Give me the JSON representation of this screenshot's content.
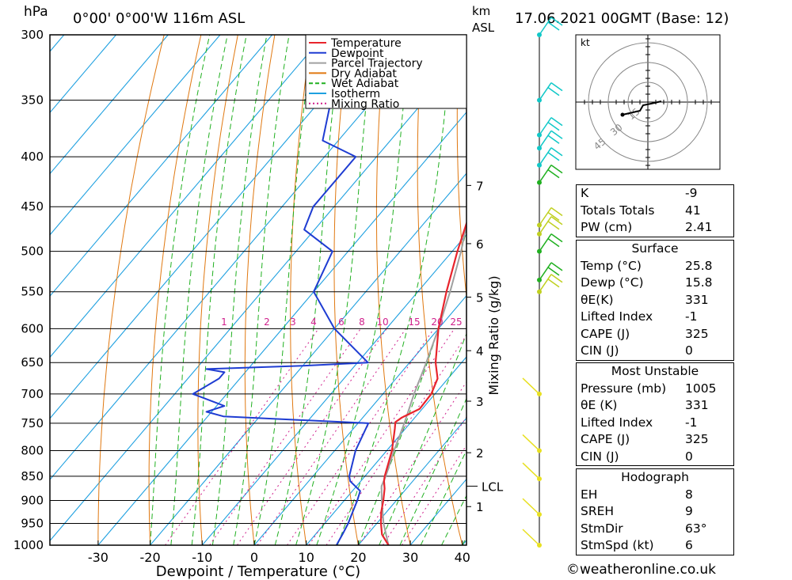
{
  "header": {
    "pressure_unit": "hPa",
    "location": "0°00' 0°00'W 116m ASL",
    "height_unit": "km",
    "height_unit2": "ASL",
    "datetime": "17.06.2021 00GMT (Base: 12)"
  },
  "colors": {
    "temperature": "#e8242c",
    "dewpoint": "#1e3cd2",
    "parcel": "#a0a0a0",
    "dry_adiabat": "#e07810",
    "wet_adiabat": "#20b020",
    "isotherm": "#1ea0e0",
    "mixing_ratio": "#d0208c",
    "wind_levels": [
      "#10c8c8",
      "#20b020",
      "#c0d020",
      "#e8e020"
    ]
  },
  "legend": [
    "Temperature",
    "Dewpoint",
    "Parcel Trajectory",
    "Dry Adiabat",
    "Wet Adiabat",
    "Isotherm",
    "Mixing Ratio"
  ],
  "chart_data": {
    "type": "line",
    "title": "",
    "xlabel": "Dewpoint / Temperature (°C)",
    "ylabel": "hPa",
    "y_right_label": "Mixing Ratio (g/kg)",
    "x_ticks": [
      -30,
      -20,
      -10,
      0,
      10,
      20,
      30,
      40
    ],
    "pressure_levels": [
      300,
      350,
      400,
      450,
      500,
      550,
      600,
      650,
      700,
      750,
      800,
      850,
      900,
      950,
      1000
    ],
    "height_ticks_km": [
      {
        "label": "1",
        "p": 913
      },
      {
        "label": "2",
        "p": 804
      },
      {
        "label": "3",
        "p": 712
      },
      {
        "label": "4",
        "p": 632
      },
      {
        "label": "5",
        "p": 557
      },
      {
        "label": "6",
        "p": 491
      },
      {
        "label": "7",
        "p": 428
      }
    ],
    "lcl": {
      "label": "LCL",
      "p": 870
    },
    "mixing_ratio_labels": [
      "1",
      "2",
      "3",
      "4",
      "6",
      "8",
      "10",
      "15",
      "20",
      "25"
    ],
    "series": [
      {
        "name": "Temperature",
        "points": [
          [
            1000,
            25.8
          ],
          [
            975,
            22.8
          ],
          [
            950,
            20.8
          ],
          [
            925,
            19.0
          ],
          [
            900,
            17.5
          ],
          [
            875,
            15.8
          ],
          [
            860,
            14.5
          ],
          [
            850,
            13.8
          ],
          [
            800,
            11.0
          ],
          [
            760,
            8.0
          ],
          [
            748,
            7.0
          ],
          [
            740,
            7.5
          ],
          [
            725,
            9.5
          ],
          [
            700,
            9.3
          ],
          [
            675,
            8.0
          ],
          [
            650,
            5.0
          ],
          [
            600,
            0.0
          ],
          [
            550,
            -4.5
          ],
          [
            500,
            -9.0
          ],
          [
            450,
            -13.5
          ],
          [
            400,
            -20.0
          ],
          [
            350,
            -29.5
          ],
          [
            300,
            -40.0
          ]
        ]
      },
      {
        "name": "Dewpoint",
        "points": [
          [
            1000,
            15.8
          ],
          [
            975,
            15.2
          ],
          [
            950,
            14.5
          ],
          [
            925,
            13.5
          ],
          [
            900,
            12.5
          ],
          [
            880,
            11.5
          ],
          [
            860,
            8.0
          ],
          [
            850,
            7.0
          ],
          [
            800,
            4.0
          ],
          [
            750,
            2.0
          ],
          [
            738,
            -27.0
          ],
          [
            730,
            -31.0
          ],
          [
            720,
            -28.5
          ],
          [
            700,
            -36.5
          ],
          [
            675,
            -34.0
          ],
          [
            665,
            -34.0
          ],
          [
            660,
            -38.0
          ],
          [
            655,
            -20.0
          ],
          [
            650,
            -8.0
          ],
          [
            600,
            -20.0
          ],
          [
            550,
            -30.0
          ],
          [
            500,
            -33.0
          ],
          [
            475,
            -42.0
          ],
          [
            450,
            -44.0
          ],
          [
            400,
            -44.0
          ],
          [
            385,
            -53.0
          ],
          [
            350,
            -58.0
          ],
          [
            300,
            -65.0
          ]
        ]
      },
      {
        "name": "Parcel Trajectory",
        "points": [
          [
            1000,
            25.8
          ],
          [
            950,
            21.3
          ],
          [
            900,
            17.2
          ],
          [
            870,
            14.8
          ],
          [
            850,
            14.0
          ],
          [
            800,
            11.4
          ],
          [
            750,
            8.9
          ],
          [
            700,
            6.0
          ],
          [
            650,
            3.2
          ],
          [
            600,
            0.0
          ],
          [
            550,
            -3.8
          ],
          [
            500,
            -8.3
          ],
          [
            450,
            -13.8
          ],
          [
            400,
            -20.7
          ],
          [
            350,
            -29.2
          ],
          [
            300,
            -39.7
          ]
        ]
      }
    ],
    "wind_barbs": [
      {
        "p": 300,
        "level": 0
      },
      {
        "p": 350,
        "level": 0
      },
      {
        "p": 380,
        "level": 0
      },
      {
        "p": 392,
        "level": 0
      },
      {
        "p": 408,
        "level": 0
      },
      {
        "p": 425,
        "level": 1
      },
      {
        "p": 470,
        "level": 2
      },
      {
        "p": 480,
        "level": 2
      },
      {
        "p": 500,
        "level": 1
      },
      {
        "p": 535,
        "level": 1
      },
      {
        "p": 550,
        "level": 2
      },
      {
        "p": 700,
        "level": 3
      },
      {
        "p": 800,
        "level": 3
      },
      {
        "p": 855,
        "level": 3
      },
      {
        "p": 930,
        "level": 3
      },
      {
        "p": 1000,
        "level": 3
      }
    ]
  },
  "hodograph": {
    "unit": "kt",
    "ring_labels": [
      "15",
      "30",
      "45"
    ]
  },
  "indices": {
    "general": [
      {
        "label": "K",
        "value": "-9"
      },
      {
        "label": "Totals Totals",
        "value": "41"
      },
      {
        "label": "PW (cm)",
        "value": "2.41"
      }
    ],
    "surface": {
      "title": "Surface",
      "rows": [
        {
          "label": "Temp (°C)",
          "value": "25.8"
        },
        {
          "label": "Dewp (°C)",
          "value": "15.8"
        },
        {
          "label": "θE(K)",
          "value": "331"
        },
        {
          "label": "Lifted Index",
          "value": "-1"
        },
        {
          "label": "CAPE (J)",
          "value": "325"
        },
        {
          "label": "CIN (J)",
          "value": "0"
        }
      ]
    },
    "most_unstable": {
      "title": "Most Unstable",
      "rows": [
        {
          "label": "Pressure (mb)",
          "value": "1005"
        },
        {
          "label": "θE (K)",
          "value": "331"
        },
        {
          "label": "Lifted Index",
          "value": "-1"
        },
        {
          "label": "CAPE (J)",
          "value": "325"
        },
        {
          "label": "CIN (J)",
          "value": "0"
        }
      ]
    },
    "hodograph_box": {
      "title": "Hodograph",
      "rows": [
        {
          "label": "EH",
          "value": "8"
        },
        {
          "label": "SREH",
          "value": "9"
        },
        {
          "label": "StmDir",
          "value": "63°"
        },
        {
          "label": "StmSpd (kt)",
          "value": "6"
        }
      ]
    }
  },
  "footer": "©weatheronline.co.uk"
}
